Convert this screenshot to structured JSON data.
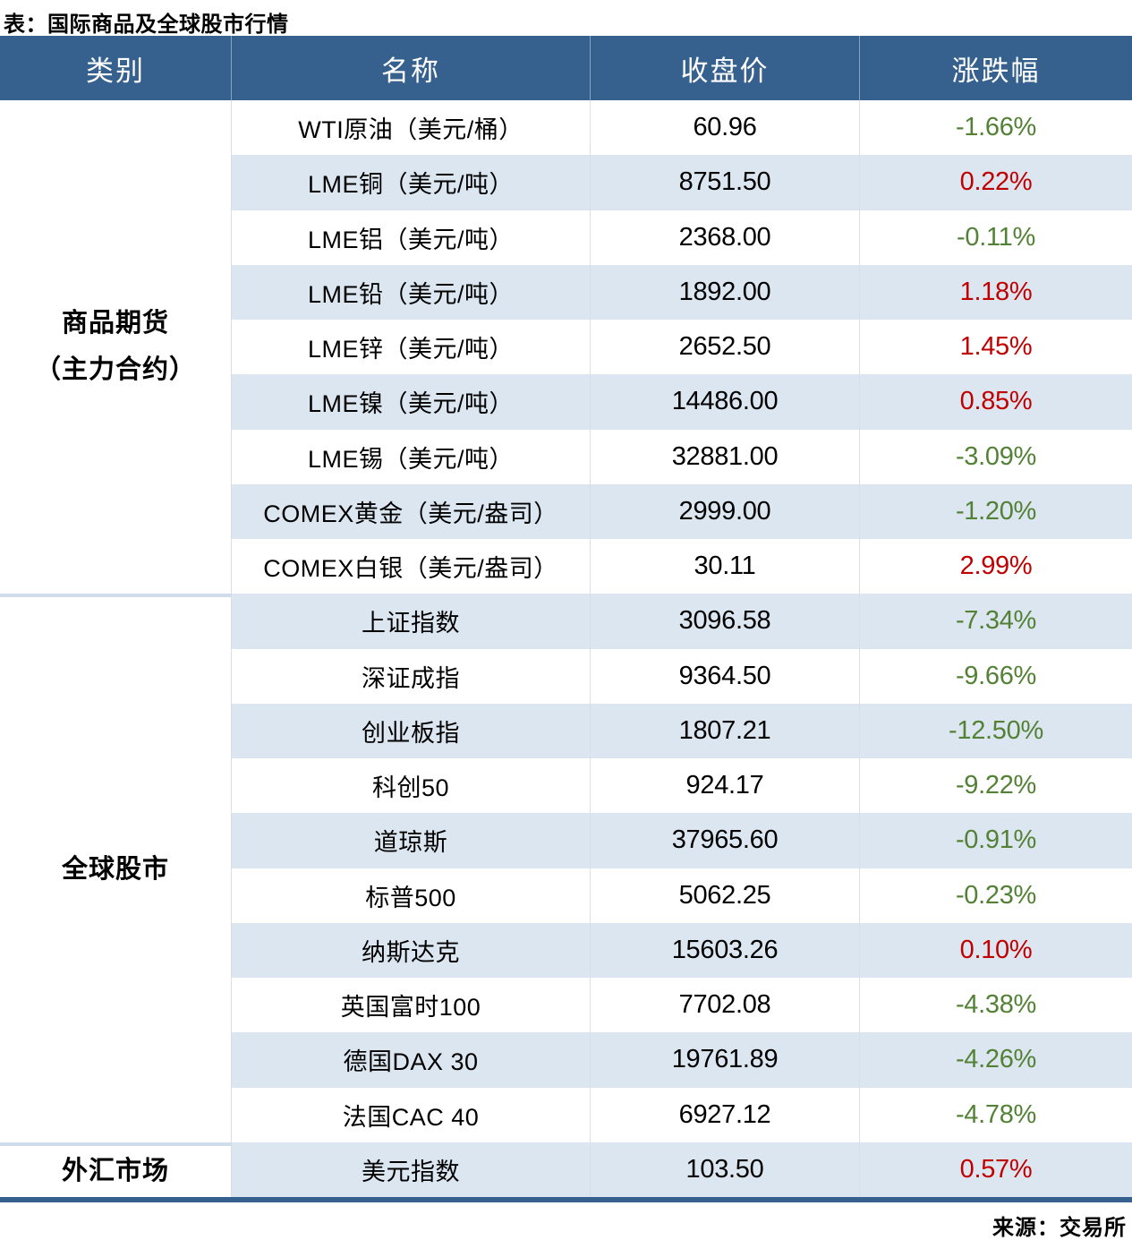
{
  "title": "表：国际商品及全球股市行情",
  "source_note": "来源：交易所",
  "colors": {
    "header_bg": "#36618E",
    "stripe_bg": "#DCE6F1",
    "up_red": "#C00000",
    "down_green": "#538135",
    "border_navy": "#36618E",
    "group_divider": "#CEDCEC"
  },
  "table": {
    "headers": [
      "类别",
      "名称",
      "收盘价",
      "涨跌幅"
    ],
    "groups": [
      {
        "category": "商品期货（主力合约）",
        "category_lines": [
          "商品期货",
          "（主力合约）"
        ],
        "rows": [
          {
            "name": "WTI原油（美元/桶）",
            "close": "60.96",
            "change": "-1.66%",
            "direction": "down"
          },
          {
            "name": "LME铜（美元/吨）",
            "close": "8751.50",
            "change": "0.22%",
            "direction": "up"
          },
          {
            "name": "LME铝（美元/吨）",
            "close": "2368.00",
            "change": "-0.11%",
            "direction": "down"
          },
          {
            "name": "LME铅（美元/吨）",
            "close": "1892.00",
            "change": "1.18%",
            "direction": "up"
          },
          {
            "name": "LME锌（美元/吨）",
            "close": "2652.50",
            "change": "1.45%",
            "direction": "up"
          },
          {
            "name": "LME镍（美元/吨）",
            "close": "14486.00",
            "change": "0.85%",
            "direction": "up"
          },
          {
            "name": "LME锡（美元/吨）",
            "close": "32881.00",
            "change": "-3.09%",
            "direction": "down"
          },
          {
            "name": "COMEX黄金（美元/盎司）",
            "close": "2999.00",
            "change": "-1.20%",
            "direction": "down"
          },
          {
            "name": "COMEX白银（美元/盎司）",
            "close": "30.11",
            "change": "2.99%",
            "direction": "up"
          }
        ]
      },
      {
        "category": "全球股市",
        "category_lines": [
          "全球股市"
        ],
        "rows": [
          {
            "name": "上证指数",
            "close": "3096.58",
            "change": "-7.34%",
            "direction": "down"
          },
          {
            "name": "深证成指",
            "close": "9364.50",
            "change": "-9.66%",
            "direction": "down"
          },
          {
            "name": "创业板指",
            "close": "1807.21",
            "change": "-12.50%",
            "direction": "down"
          },
          {
            "name": "科创50",
            "close": "924.17",
            "change": "-9.22%",
            "direction": "down"
          },
          {
            "name": "道琼斯",
            "close": "37965.60",
            "change": "-0.91%",
            "direction": "down"
          },
          {
            "name": "标普500",
            "close": "5062.25",
            "change": "-0.23%",
            "direction": "down"
          },
          {
            "name": "纳斯达克",
            "close": "15603.26",
            "change": "0.10%",
            "direction": "up"
          },
          {
            "name": "英国富时100",
            "close": "7702.08",
            "change": "-4.38%",
            "direction": "down"
          },
          {
            "name": "德国DAX 30",
            "close": "19761.89",
            "change": "-4.26%",
            "direction": "down"
          },
          {
            "name": "法国CAC 40",
            "close": "6927.12",
            "change": "-4.78%",
            "direction": "down"
          }
        ]
      },
      {
        "category": "外汇市场",
        "category_lines": [
          "外汇市场"
        ],
        "rows": [
          {
            "name": "美元指数",
            "close": "103.50",
            "change": "0.57%",
            "direction": "up"
          }
        ]
      }
    ]
  }
}
